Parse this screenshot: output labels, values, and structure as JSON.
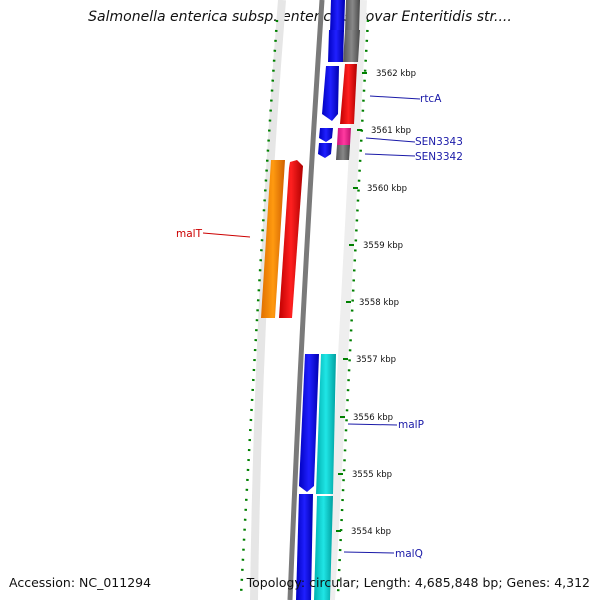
{
  "title": "Salmonella enterica subsp. enterica serovar Enteritidis str....",
  "accession": "Accession: NC_011294",
  "topology": "Topology: circular; Length: 4,685,848 bp; Genes: 4,312",
  "ticks": [
    {
      "kbp": 3562,
      "label": "3562 kbp"
    },
    {
      "kbp": 3561,
      "label": "3561 kbp"
    },
    {
      "kbp": 3560,
      "label": "3560 kbp"
    },
    {
      "kbp": 3559,
      "label": "3559 kbp"
    },
    {
      "kbp": 3558,
      "label": "3558 kbp"
    },
    {
      "kbp": 3557,
      "label": "3557 kbp"
    },
    {
      "kbp": 3556,
      "label": "3556 kbp"
    },
    {
      "kbp": 3555,
      "label": "3555 kbp"
    },
    {
      "kbp": 3554,
      "label": "3554 kbp"
    }
  ],
  "gene_labels": [
    {
      "name": "rtcA",
      "color": "#1a1aa8"
    },
    {
      "name": "SEN3343",
      "color": "#1a1aa8"
    },
    {
      "name": "SEN3342",
      "color": "#1a1aa8"
    },
    {
      "name": "malT",
      "color": "#cc0000"
    },
    {
      "name": "malP",
      "color": "#1a1aa8"
    },
    {
      "name": "malQ",
      "color": "#1a1aa8"
    }
  ],
  "colors": {
    "cds_forward": "#0000ee",
    "cds_reverse": "#ee0000",
    "orange_feature": "#ff8800",
    "magenta_feature": "#ff1493",
    "cyan_feature": "#00cccc",
    "gray_feature": "#666666",
    "backbone": "#808080",
    "dotted_ring": "#008000"
  }
}
